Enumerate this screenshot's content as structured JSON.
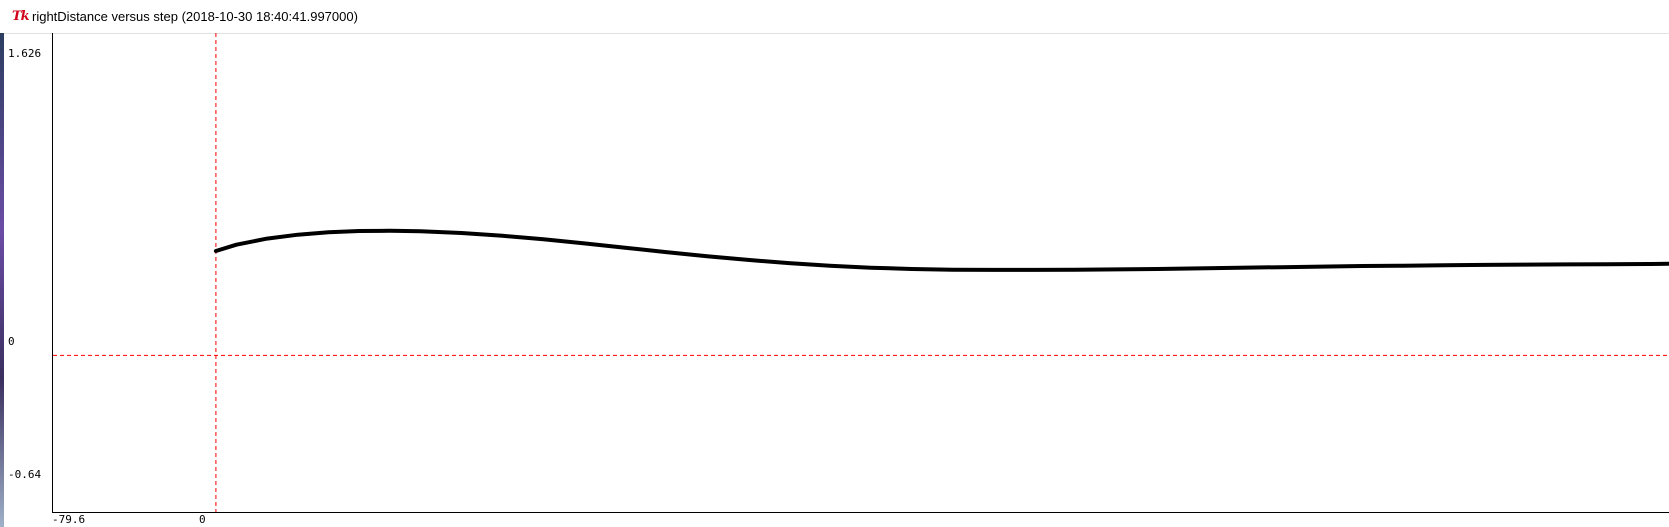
{
  "window": {
    "title": "rightDistance versus step (2018-10-30 18:40:41.997000)",
    "icon": "tk-icon"
  },
  "chart_data": {
    "type": "line",
    "title": "",
    "xlabel": "",
    "ylabel": "",
    "xlim": [
      -79.6,
      710
    ],
    "ylim": [
      -0.64,
      1.626
    ],
    "y_tick_labels": [
      "1.626",
      "0",
      "-0.64"
    ],
    "x_tick_labels": [
      "-79.6",
      "0"
    ],
    "reference_lines": {
      "x": 0,
      "y": 0,
      "color": "#ff0000",
      "style": "dashed"
    },
    "line_color": "#000000",
    "series": [
      {
        "x": [
          0,
          10,
          25,
          40,
          55,
          70,
          85,
          100,
          120,
          140,
          160,
          180,
          200,
          220,
          240,
          260,
          280,
          300,
          320,
          340,
          360,
          380,
          400,
          420,
          440,
          460,
          480,
          500,
          520,
          540,
          560,
          580,
          600,
          620,
          640,
          660,
          680,
          700,
          710
        ],
        "y": [
          0.563,
          0.597,
          0.63,
          0.651,
          0.664,
          0.671,
          0.672,
          0.67,
          0.66,
          0.645,
          0.626,
          0.604,
          0.581,
          0.557,
          0.535,
          0.515,
          0.498,
          0.484,
          0.473,
          0.466,
          0.462,
          0.461,
          0.461,
          0.462,
          0.464,
          0.466,
          0.469,
          0.473,
          0.476,
          0.479,
          0.482,
          0.484,
          0.486,
          0.488,
          0.49,
          0.491,
          0.492,
          0.493,
          0.494
        ]
      }
    ]
  }
}
